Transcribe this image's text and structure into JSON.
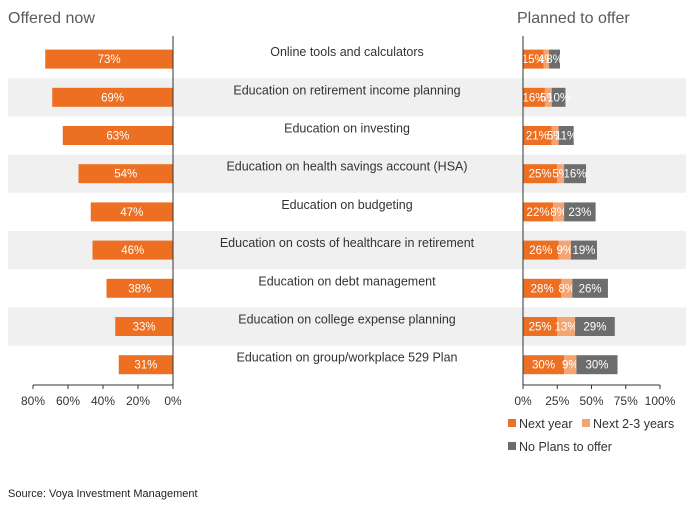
{
  "chart_data": {
    "type": "bar",
    "titles": {
      "left": "Offered now",
      "right": "Planned to offer"
    },
    "categories": [
      "Online tools and calculators",
      "Education on retirement income planning",
      "Education on investing",
      "Education on health savings account (HSA)",
      "Education on budgeting",
      "Education on costs of healthcare in retirement",
      "Education on debt management",
      "Education on college expense planning",
      "Education on group/workplace 529 Plan"
    ],
    "offered_now": {
      "values": [
        73,
        69,
        63,
        54,
        47,
        46,
        38,
        33,
        31
      ],
      "labels": [
        "73%",
        "69%",
        "63%",
        "54%",
        "47%",
        "46%",
        "38%",
        "33%",
        "31%"
      ],
      "xlim": [
        0,
        80
      ],
      "ticks": [
        "80%",
        "60%",
        "40%",
        "20%",
        "0%"
      ],
      "reversed": true
    },
    "planned": {
      "xlim": [
        0,
        100
      ],
      "ticks": [
        "0%",
        "25%",
        "50%",
        "75%",
        "100%"
      ],
      "stacked": true,
      "series": [
        {
          "name": "Next year",
          "color": "#ec6f22",
          "values": [
            15,
            16,
            21,
            25,
            22,
            26,
            28,
            25,
            30
          ],
          "labels": [
            "15%",
            "16%",
            "21%",
            "25%",
            "22%",
            "26%",
            "28%",
            "25%",
            "30%"
          ]
        },
        {
          "name": "Next 2-3 years",
          "color": "#f4a472",
          "values": [
            4,
            5,
            5,
            5,
            8,
            9,
            8,
            13,
            9
          ],
          "labels": [
            "4%",
            "5%",
            "5%",
            "5%",
            "8%",
            "9%",
            "8%",
            "13%",
            "9%"
          ]
        },
        {
          "name": "No Plans to offer",
          "color": "#6d6d6d",
          "values": [
            8,
            10,
            11,
            16,
            23,
            19,
            26,
            29,
            30
          ],
          "labels": [
            "8%",
            "10%",
            "11%",
            "16%",
            "23%",
            "19%",
            "26%",
            "29%",
            "30%"
          ]
        }
      ]
    },
    "colors": {
      "offered": "#ec6f22",
      "row_shade": "#f0f0f0",
      "axis": "#333333"
    },
    "legend_position": "bottom-right",
    "grid": false
  },
  "source": "Source: Voya Investment Management"
}
